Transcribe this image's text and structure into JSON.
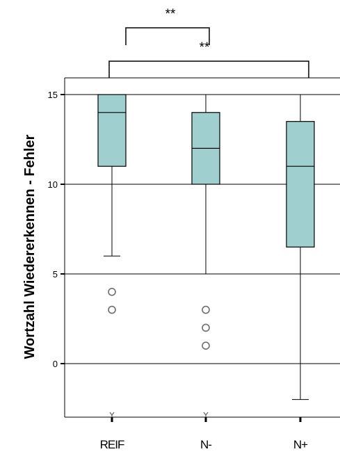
{
  "chart_data": {
    "type": "box",
    "ylabel": "Wortzahl Wiedererkennen - Fehler",
    "ylim": [
      -3,
      16
    ],
    "yticks": [
      0,
      5,
      10,
      15
    ],
    "grid": true,
    "box_color": "#9fd0cf",
    "categories": [
      "REIF",
      "N-",
      "N+"
    ],
    "boxes": [
      {
        "category": "REIF",
        "whisker_low": 6,
        "q1": 11,
        "median": 14,
        "q3": 15,
        "whisker_high": 15,
        "outliers": [
          4,
          3
        ],
        "extremes": [
          -3
        ]
      },
      {
        "category": "N-",
        "whisker_low": 5,
        "q1": 10,
        "median": 12,
        "q3": 14,
        "whisker_high": 15,
        "outliers": [
          3,
          2,
          1
        ],
        "extremes": [
          -3
        ]
      },
      {
        "category": "N+",
        "whisker_low": -2,
        "q1": 6.5,
        "median": 11,
        "q3": 13.5,
        "whisker_high": 15,
        "outliers": [],
        "extremes": []
      }
    ],
    "significance": [
      {
        "from": "REIF",
        "to": "N-",
        "label": "**"
      },
      {
        "from": "REIF",
        "to": "N+",
        "label": "**"
      }
    ]
  }
}
